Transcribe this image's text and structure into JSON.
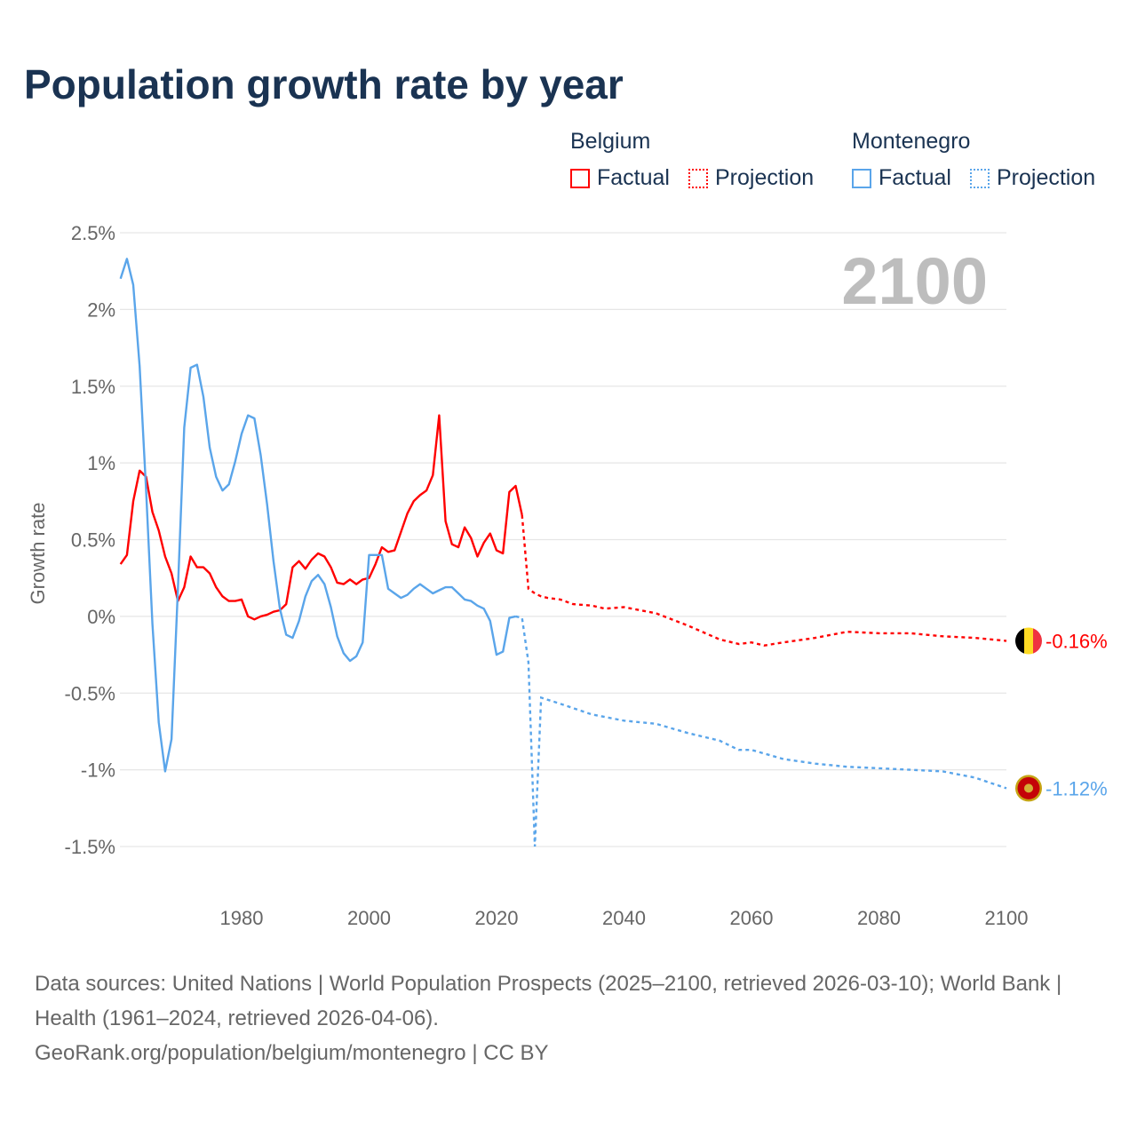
{
  "title": "Population growth rate by year",
  "legend": {
    "groups": [
      {
        "name": "Belgium",
        "color": "#ff0000",
        "factual": "Factual",
        "projection": "Projection"
      },
      {
        "name": "Montenegro",
        "color": "#5aa5ea",
        "factual": "Factual",
        "projection": "Projection"
      }
    ]
  },
  "year_overlay": "2100",
  "chart_data": {
    "type": "line",
    "title": "Population growth rate by year",
    "xlabel": "",
    "ylabel": "Growth rate",
    "xlim": [
      1961,
      2100
    ],
    "ylim": [
      -1.5,
      2.5
    ],
    "x_ticks": [
      "1980",
      "2000",
      "2020",
      "2040",
      "2060",
      "2080",
      "2100"
    ],
    "x_tick_values": [
      1980,
      2000,
      2020,
      2040,
      2060,
      2080,
      2100
    ],
    "y_ticks": [
      "2.5%",
      "2%",
      "1.5%",
      "1%",
      "0.5%",
      "0%",
      "-0.5%",
      "-1%",
      "-1.5%"
    ],
    "y_tick_values": [
      2.5,
      2,
      1.5,
      1,
      0.5,
      0,
      -0.5,
      -1,
      -1.5
    ],
    "grid": true,
    "series": [
      {
        "name": "Belgium",
        "color": "#ff0000",
        "end_label": "-0.16%",
        "factual": {
          "x": [
            1961,
            1962,
            1963,
            1964,
            1965,
            1966,
            1967,
            1968,
            1969,
            1970,
            1971,
            1972,
            1973,
            1974,
            1975,
            1976,
            1977,
            1978,
            1979,
            1980,
            1981,
            1982,
            1983,
            1984,
            1985,
            1986,
            1987,
            1988,
            1989,
            1990,
            1991,
            1992,
            1993,
            1994,
            1995,
            1996,
            1997,
            1998,
            1999,
            2000,
            2001,
            2002,
            2003,
            2004,
            2005,
            2006,
            2007,
            2008,
            2009,
            2010,
            2011,
            2012,
            2013,
            2014,
            2015,
            2016,
            2017,
            2018,
            2019,
            2020,
            2021,
            2022,
            2023,
            2024
          ],
          "y": [
            0.34,
            0.4,
            0.75,
            0.95,
            0.91,
            0.68,
            0.56,
            0.39,
            0.28,
            0.1,
            0.19,
            0.39,
            0.32,
            0.32,
            0.28,
            0.19,
            0.13,
            0.1,
            0.1,
            0.11,
            0.0,
            -0.02,
            0.0,
            0.01,
            0.03,
            0.04,
            0.08,
            0.32,
            0.36,
            0.31,
            0.37,
            0.41,
            0.39,
            0.32,
            0.22,
            0.21,
            0.24,
            0.21,
            0.24,
            0.25,
            0.34,
            0.45,
            0.42,
            0.43,
            0.55,
            0.67,
            0.75,
            0.79,
            0.82,
            0.92,
            1.31,
            0.62,
            0.47,
            0.45,
            0.58,
            0.51,
            0.39,
            0.48,
            0.54,
            0.43,
            0.41,
            0.81,
            0.85,
            0.66
          ]
        },
        "projection": {
          "x": [
            2024,
            2025,
            2026,
            2027,
            2028,
            2030,
            2032,
            2035,
            2037,
            2040,
            2045,
            2050,
            2055,
            2058,
            2060,
            2062,
            2065,
            2070,
            2075,
            2080,
            2085,
            2090,
            2095,
            2100
          ],
          "y": [
            0.66,
            0.18,
            0.15,
            0.13,
            0.12,
            0.11,
            0.08,
            0.07,
            0.05,
            0.06,
            0.02,
            -0.06,
            -0.15,
            -0.18,
            -0.17,
            -0.19,
            -0.17,
            -0.14,
            -0.1,
            -0.11,
            -0.11,
            -0.13,
            -0.14,
            -0.16
          ]
        }
      },
      {
        "name": "Montenegro",
        "color": "#5aa5ea",
        "end_label": "-1.12%",
        "factual": {
          "x": [
            1961,
            1962,
            1963,
            1964,
            1965,
            1966,
            1967,
            1968,
            1969,
            1970,
            1971,
            1972,
            1973,
            1974,
            1975,
            1976,
            1977,
            1978,
            1979,
            1980,
            1981,
            1982,
            1983,
            1984,
            1985,
            1986,
            1987,
            1988,
            1989,
            1990,
            1991,
            1992,
            1993,
            1994,
            1995,
            1996,
            1997,
            1998,
            1999,
            2000,
            2001,
            2002,
            2003,
            2004,
            2005,
            2006,
            2007,
            2008,
            2009,
            2010,
            2011,
            2012,
            2013,
            2014,
            2015,
            2016,
            2017,
            2018,
            2019,
            2020,
            2021,
            2022,
            2023
          ],
          "y": [
            2.2,
            2.33,
            2.16,
            1.63,
            0.83,
            -0.05,
            -0.69,
            -1.01,
            -0.8,
            0.18,
            1.23,
            1.62,
            1.64,
            1.43,
            1.1,
            0.91,
            0.82,
            0.86,
            1.01,
            1.19,
            1.31,
            1.29,
            1.05,
            0.73,
            0.36,
            0.05,
            -0.12,
            -0.14,
            -0.03,
            0.13,
            0.23,
            0.27,
            0.21,
            0.06,
            -0.13,
            -0.24,
            -0.29,
            -0.26,
            -0.17,
            0.4,
            0.4,
            0.4,
            0.18,
            0.15,
            0.12,
            0.14,
            0.18,
            0.21,
            0.18,
            0.15,
            0.17,
            0.19,
            0.19,
            0.15,
            0.11,
            0.1,
            0.07,
            0.05,
            -0.03,
            -0.25,
            -0.23,
            -0.01,
            0.0
          ]
        },
        "projection": {
          "x": [
            2023,
            2024,
            2025,
            2026,
            2027,
            2030,
            2035,
            2040,
            2045,
            2050,
            2055,
            2058,
            2060,
            2065,
            2070,
            2075,
            2080,
            2085,
            2090,
            2095,
            2100
          ],
          "y": [
            0.0,
            -0.01,
            -0.3,
            -1.5,
            -0.53,
            -0.57,
            -0.64,
            -0.68,
            -0.7,
            -0.76,
            -0.81,
            -0.87,
            -0.87,
            -0.93,
            -0.96,
            -0.98,
            -0.99,
            -1.0,
            -1.01,
            -1.05,
            -1.12
          ]
        }
      }
    ]
  },
  "footer": {
    "sources": "Data sources: United Nations | World Population Prospects (2025–2100, retrieved 2026-03-10); World Bank | Health (1961–2024, retrieved 2026-04-06).",
    "link": "GeoRank.org/population/belgium/montenegro | CC BY"
  }
}
